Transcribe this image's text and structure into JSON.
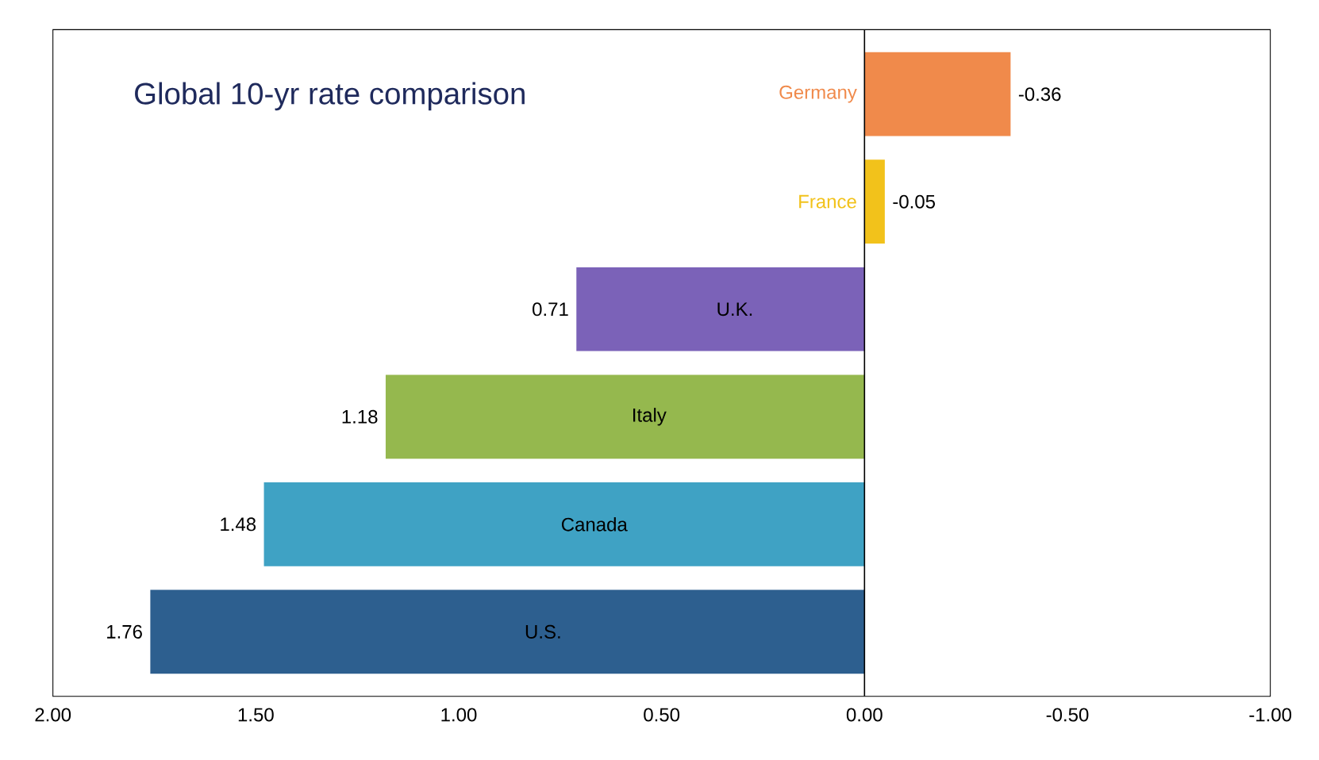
{
  "chart_data": {
    "type": "bar",
    "orientation": "horizontal",
    "title": "Global 10-yr rate comparison",
    "categories": [
      "Germany",
      "France",
      "U.K.",
      "Italy",
      "Canada",
      "U.S."
    ],
    "values": [
      -0.36,
      -0.05,
      0.71,
      1.18,
      1.48,
      1.76
    ],
    "value_labels": [
      "-0.36",
      "-0.05",
      "0.71",
      "1.18",
      "1.48",
      "1.76"
    ],
    "colors": [
      "#f08a4b",
      "#f2c21b",
      "#7b62b8",
      "#95b84e",
      "#3fa2c4",
      "#2d5f8f"
    ],
    "xlim": [
      2,
      -1
    ],
    "xticks": [
      {
        "value": 2,
        "label": "2.00"
      },
      {
        "value": 1.5,
        "label": "1.50"
      },
      {
        "value": 1,
        "label": "1.00"
      },
      {
        "value": 0.5,
        "label": "0.50"
      },
      {
        "value": 0,
        "label": "0.00"
      },
      {
        "value": -0.5,
        "label": "-0.50"
      },
      {
        "value": -1,
        "label": "-1.00"
      }
    ],
    "tick_labels": "x"
  }
}
